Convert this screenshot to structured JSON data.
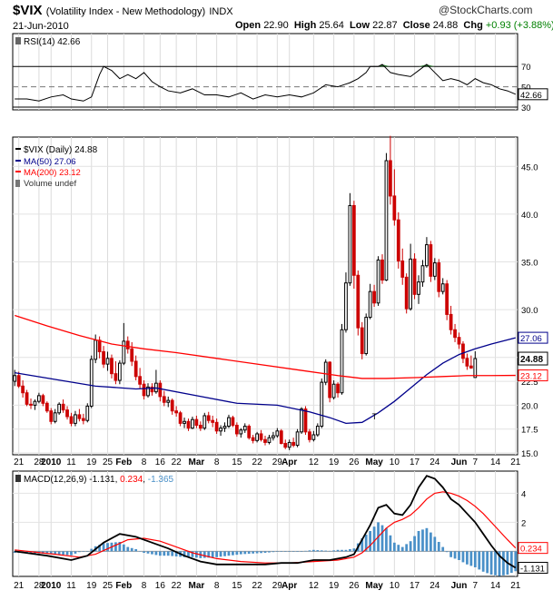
{
  "header": {
    "symbol": "$VIX",
    "name": "(Volatility Index - New Methodology)",
    "exchange": "INDX",
    "watermark": "@StockCharts.com",
    "date": "21-Jun-2010",
    "open_label": "Open",
    "open": "22.90",
    "high_label": "High",
    "high": "25.64",
    "low_label": "Low",
    "low": "22.87",
    "close_label": "Close",
    "close": "24.88",
    "chg_label": "Chg",
    "chg": "+0.93 (+3.88%)",
    "chg_arrow": "▲"
  },
  "colors": {
    "up": "#000000",
    "down": "#cc0000",
    "ma50": "#00008b",
    "ma200": "#ff0000",
    "macd_line": "#000000",
    "signal_line": "#ff0000",
    "histogram": "#4a90c8",
    "rsi_fill": "#2e7d32"
  },
  "x_labels": [
    {
      "i": 1,
      "t": "21"
    },
    {
      "i": 6,
      "t": "28"
    },
    {
      "i": 9,
      "t": "2010",
      "bold": true
    },
    {
      "i": 14,
      "t": "11"
    },
    {
      "i": 19,
      "t": "19"
    },
    {
      "i": 23,
      "t": "25"
    },
    {
      "i": 27,
      "t": "Feb",
      "bold": true
    },
    {
      "i": 32,
      "t": "8"
    },
    {
      "i": 36,
      "t": "16"
    },
    {
      "i": 40,
      "t": "22"
    },
    {
      "i": 45,
      "t": "Mar",
      "bold": true
    },
    {
      "i": 50,
      "t": "8"
    },
    {
      "i": 55,
      "t": "15"
    },
    {
      "i": 60,
      "t": "22"
    },
    {
      "i": 65,
      "t": "29"
    },
    {
      "i": 68,
      "t": "Apr",
      "bold": true
    },
    {
      "i": 74,
      "t": "12"
    },
    {
      "i": 79,
      "t": "19"
    },
    {
      "i": 84,
      "t": "26"
    },
    {
      "i": 89,
      "t": "May",
      "bold": true
    },
    {
      "i": 94,
      "t": "10"
    },
    {
      "i": 99,
      "t": "17"
    },
    {
      "i": 104,
      "t": "24"
    },
    {
      "i": 110,
      "t": "Jun",
      "bold": true
    },
    {
      "i": 114,
      "t": "7"
    },
    {
      "i": 119,
      "t": "14"
    },
    {
      "i": 124,
      "t": "21"
    }
  ],
  "rsi": {
    "label": "RSI(14) 42.66",
    "last": "42.66",
    "ticks": [
      "70",
      "50",
      "30"
    ],
    "levels": [
      70,
      50,
      30
    ],
    "points": [
      [
        0,
        38
      ],
      [
        3,
        38
      ],
      [
        6,
        36
      ],
      [
        9,
        40
      ],
      [
        12,
        42
      ],
      [
        14,
        38
      ],
      [
        17,
        36
      ],
      [
        19,
        40
      ],
      [
        21,
        62
      ],
      [
        22,
        70
      ],
      [
        24,
        66
      ],
      [
        26,
        58
      ],
      [
        28,
        62
      ],
      [
        30,
        58
      ],
      [
        32,
        64
      ],
      [
        34,
        55
      ],
      [
        36,
        50
      ],
      [
        38,
        46
      ],
      [
        41,
        44
      ],
      [
        44,
        48
      ],
      [
        47,
        42
      ],
      [
        50,
        42
      ],
      [
        53,
        40
      ],
      [
        56,
        44
      ],
      [
        59,
        38
      ],
      [
        62,
        42
      ],
      [
        65,
        40
      ],
      [
        68,
        42
      ],
      [
        71,
        40
      ],
      [
        74,
        44
      ],
      [
        77,
        52
      ],
      [
        80,
        50
      ],
      [
        83,
        54
      ],
      [
        85,
        58
      ],
      [
        87,
        64
      ],
      [
        88,
        70
      ],
      [
        90,
        70
      ],
      [
        91,
        72
      ],
      [
        93,
        64
      ],
      [
        95,
        62
      ],
      [
        98,
        60
      ],
      [
        100,
        66
      ],
      [
        102,
        72
      ],
      [
        104,
        64
      ],
      [
        106,
        56
      ],
      [
        108,
        58
      ],
      [
        110,
        56
      ],
      [
        112,
        52
      ],
      [
        114,
        58
      ],
      [
        116,
        54
      ],
      [
        118,
        52
      ],
      [
        120,
        48
      ],
      [
        122,
        46
      ],
      [
        124,
        42.66
      ]
    ]
  },
  "price": {
    "label": "$VIX (Daily) 24.88",
    "ma50_label": "MA(50) 27.06",
    "ma200_label": "MA(200) 23.12",
    "volume_label": "Volume undef",
    "ticks": [
      "45.0",
      "40.0",
      "35.0",
      "30.0",
      "25.0",
      "22.5",
      "20.0",
      "17.5",
      "15.0"
    ],
    "tick_values": [
      45,
      40,
      35,
      30,
      25,
      22.5,
      20,
      17.5,
      15
    ],
    "ymin": 15,
    "ymax": 47.5,
    "last_close": "24.88",
    "ma50_last": "27.06",
    "ma200_last": "23.12",
    "annotation": "T",
    "candles": [
      [
        22.5,
        23.7,
        22.0,
        23.1
      ],
      [
        23.1,
        23.5,
        21.8,
        22.0
      ],
      [
        22.0,
        22.6,
        20.8,
        21.3
      ],
      [
        21.3,
        21.6,
        19.9,
        20.1
      ],
      [
        20.1,
        20.7,
        19.6,
        20.0
      ],
      [
        20.0,
        20.6,
        19.5,
        20.4
      ],
      [
        20.4,
        21.3,
        20.2,
        21.0
      ],
      [
        21.0,
        21.2,
        19.9,
        20.2
      ],
      [
        20.2,
        20.4,
        19.2,
        19.4
      ],
      [
        19.4,
        19.7,
        18.0,
        18.3
      ],
      [
        18.3,
        19.6,
        18.1,
        19.2
      ],
      [
        19.2,
        20.3,
        19.0,
        20.1
      ],
      [
        20.1,
        20.6,
        19.2,
        19.5
      ],
      [
        19.5,
        19.9,
        18.5,
        18.8
      ],
      [
        18.8,
        19.2,
        17.8,
        18.1
      ],
      [
        18.1,
        19.4,
        17.8,
        19.0
      ],
      [
        19.0,
        19.6,
        18.3,
        18.6
      ],
      [
        18.6,
        19.1,
        18.0,
        18.4
      ],
      [
        18.4,
        20.2,
        18.2,
        19.9
      ],
      [
        19.9,
        25.2,
        19.7,
        24.8
      ],
      [
        24.8,
        27.4,
        24.4,
        26.8
      ],
      [
        26.8,
        27.2,
        24.9,
        25.6
      ],
      [
        25.6,
        26.2,
        23.9,
        24.3
      ],
      [
        24.3,
        25.6,
        23.6,
        24.9
      ],
      [
        24.9,
        25.3,
        22.8,
        23.3
      ],
      [
        23.3,
        24.6,
        22.2,
        22.6
      ],
      [
        22.6,
        24.7,
        22.2,
        24.4
      ],
      [
        24.4,
        28.6,
        24.2,
        26.7
      ],
      [
        26.7,
        27.2,
        25.4,
        25.9
      ],
      [
        25.9,
        26.6,
        24.1,
        24.6
      ],
      [
        24.6,
        25.2,
        22.6,
        23.0
      ],
      [
        23.0,
        23.9,
        21.7,
        22.2
      ],
      [
        22.2,
        22.6,
        20.6,
        21.0
      ],
      [
        21.0,
        22.3,
        20.8,
        21.9
      ],
      [
        21.9,
        22.3,
        21.0,
        21.4
      ],
      [
        21.4,
        23.7,
        21.2,
        22.3
      ],
      [
        22.3,
        22.6,
        20.4,
        20.9
      ],
      [
        20.9,
        21.5,
        19.9,
        20.3
      ],
      [
        20.3,
        20.9,
        19.8,
        20.5
      ],
      [
        20.5,
        20.7,
        19.0,
        19.4
      ],
      [
        19.4,
        19.9,
        18.8,
        19.2
      ],
      [
        19.2,
        19.4,
        17.8,
        18.1
      ],
      [
        18.1,
        18.7,
        17.6,
        18.3
      ],
      [
        18.3,
        18.6,
        17.3,
        17.6
      ],
      [
        17.6,
        18.8,
        17.5,
        18.5
      ],
      [
        18.5,
        18.9,
        17.6,
        17.9
      ],
      [
        17.9,
        18.3,
        17.3,
        17.6
      ],
      [
        17.6,
        19.2,
        17.4,
        18.9
      ],
      [
        18.9,
        19.3,
        18.1,
        18.4
      ],
      [
        18.4,
        18.9,
        17.7,
        18.2
      ],
      [
        18.2,
        18.6,
        17.0,
        17.3
      ],
      [
        17.3,
        17.9,
        16.8,
        17.6
      ],
      [
        17.6,
        18.2,
        17.2,
        17.8
      ],
      [
        17.8,
        19.0,
        17.6,
        18.7
      ],
      [
        18.7,
        18.9,
        17.7,
        17.9
      ],
      [
        17.9,
        18.2,
        16.7,
        17.0
      ],
      [
        17.0,
        17.6,
        16.6,
        17.4
      ],
      [
        17.4,
        18.1,
        17.1,
        17.8
      ],
      [
        17.8,
        18.0,
        16.4,
        16.6
      ],
      [
        16.6,
        16.9,
        16.0,
        16.3
      ],
      [
        16.3,
        17.2,
        16.1,
        17.0
      ],
      [
        17.0,
        17.4,
        16.2,
        16.4
      ],
      [
        16.4,
        16.8,
        15.8,
        16.1
      ],
      [
        16.1,
        16.9,
        15.9,
        16.6
      ],
      [
        16.6,
        17.2,
        16.3,
        16.8
      ],
      [
        16.8,
        17.6,
        16.6,
        17.3
      ],
      [
        17.3,
        17.5,
        15.9,
        16.0
      ],
      [
        16.0,
        16.4,
        15.4,
        15.6
      ],
      [
        15.6,
        16.4,
        15.3,
        16.1
      ],
      [
        16.1,
        16.6,
        15.6,
        15.8
      ],
      [
        15.8,
        17.5,
        15.6,
        17.2
      ],
      [
        17.2,
        19.8,
        17.0,
        19.6
      ],
      [
        19.6,
        19.9,
        16.9,
        17.2
      ],
      [
        17.2,
        17.5,
        16.1,
        16.4
      ],
      [
        16.4,
        17.3,
        16.2,
        16.9
      ],
      [
        16.9,
        18.1,
        16.7,
        17.8
      ],
      [
        17.8,
        22.8,
        17.6,
        22.4
      ],
      [
        22.4,
        24.8,
        22.1,
        24.5
      ],
      [
        24.5,
        24.6,
        20.3,
        20.8
      ],
      [
        20.8,
        22.6,
        20.6,
        22.2
      ],
      [
        22.2,
        22.4,
        20.8,
        21.3
      ],
      [
        21.3,
        28.5,
        21.1,
        27.9
      ],
      [
        27.9,
        33.9,
        27.6,
        32.8
      ],
      [
        32.8,
        42.2,
        32.5,
        40.9
      ],
      [
        40.9,
        41.4,
        32.2,
        33.6
      ],
      [
        33.6,
        34.1,
        27.3,
        28.1
      ],
      [
        28.1,
        28.7,
        24.8,
        25.4
      ],
      [
        25.4,
        29.6,
        25.2,
        29.2
      ],
      [
        29.2,
        32.7,
        29.0,
        31.9
      ],
      [
        31.9,
        32.6,
        30.3,
        30.7
      ],
      [
        30.7,
        35.6,
        30.4,
        35.2
      ],
      [
        35.2,
        35.8,
        32.7,
        33.1
      ],
      [
        33.1,
        46.4,
        33.0,
        45.6
      ],
      [
        45.6,
        48.2,
        41.0,
        41.9
      ],
      [
        41.9,
        44.7,
        38.8,
        39.4
      ],
      [
        39.4,
        40.2,
        34.3,
        35.1
      ],
      [
        35.1,
        36.4,
        32.6,
        33.4
      ],
      [
        33.4,
        33.8,
        29.6,
        30.1
      ],
      [
        30.1,
        36.9,
        29.9,
        35.3
      ],
      [
        35.3,
        35.9,
        31.1,
        31.6
      ],
      [
        31.6,
        33.6,
        30.6,
        32.9
      ],
      [
        32.9,
        35.2,
        32.4,
        34.6
      ],
      [
        34.6,
        37.6,
        34.4,
        36.8
      ],
      [
        36.8,
        37.2,
        32.9,
        33.5
      ],
      [
        33.5,
        35.4,
        33.1,
        34.9
      ],
      [
        34.9,
        35.3,
        31.3,
        31.9
      ],
      [
        31.9,
        33.3,
        31.6,
        32.7
      ],
      [
        32.7,
        33.1,
        28.9,
        29.5
      ],
      [
        29.5,
        30.4,
        27.4,
        27.9
      ],
      [
        27.9,
        28.5,
        26.6,
        27.1
      ],
      [
        27.1,
        27.6,
        25.9,
        26.4
      ],
      [
        26.4,
        26.7,
        24.4,
        24.9
      ],
      [
        24.9,
        25.4,
        23.7,
        24.1
      ],
      [
        24.1,
        25.2,
        23.8,
        23.9
      ],
      [
        22.9,
        25.64,
        22.87,
        24.88
      ]
    ],
    "ma50": [
      [
        0,
        23.4
      ],
      [
        10,
        22.7
      ],
      [
        20,
        22.0
      ],
      [
        30,
        21.7
      ],
      [
        35,
        21.8
      ],
      [
        45,
        21.0
      ],
      [
        55,
        20.2
      ],
      [
        65,
        20.0
      ],
      [
        73,
        19.3
      ],
      [
        78,
        18.7
      ],
      [
        82,
        18.1
      ],
      [
        86,
        18.2
      ],
      [
        90,
        19.2
      ],
      [
        94,
        20.4
      ],
      [
        98,
        21.8
      ],
      [
        102,
        23.2
      ],
      [
        106,
        24.4
      ],
      [
        110,
        25.3
      ],
      [
        114,
        25.9
      ],
      [
        118,
        26.4
      ],
      [
        124,
        27.06
      ]
    ],
    "ma200": [
      [
        0,
        29.4
      ],
      [
        8,
        28.3
      ],
      [
        16,
        27.3
      ],
      [
        24,
        26.4
      ],
      [
        32,
        25.9
      ],
      [
        40,
        25.5
      ],
      [
        50,
        24.9
      ],
      [
        60,
        24.3
      ],
      [
        70,
        23.7
      ],
      [
        80,
        23.1
      ],
      [
        86,
        22.8
      ],
      [
        92,
        22.8
      ],
      [
        100,
        22.9
      ],
      [
        106,
        23.0
      ],
      [
        112,
        23.1
      ],
      [
        118,
        23.1
      ],
      [
        124,
        23.12
      ]
    ]
  },
  "macd": {
    "label_prefix": "MACD(12,26,9)",
    "macd_value": "-1.131",
    "signal_value": "0.234",
    "hist_value": "-1.365",
    "ticks": [
      "4",
      "2"
    ],
    "tick_values": [
      4,
      2
    ],
    "ymin": -1.6,
    "ymax": 5.4,
    "macd_last": "-1.131",
    "signal_last": "0.234",
    "macd_pts": [
      [
        0,
        0.0
      ],
      [
        8,
        -0.3
      ],
      [
        14,
        -0.6
      ],
      [
        18,
        -0.3
      ],
      [
        22,
        0.6
      ],
      [
        26,
        1.2
      ],
      [
        30,
        1.0
      ],
      [
        34,
        0.6
      ],
      [
        38,
        0.2
      ],
      [
        42,
        -0.3
      ],
      [
        46,
        -0.7
      ],
      [
        50,
        -0.9
      ],
      [
        56,
        -0.9
      ],
      [
        62,
        -0.9
      ],
      [
        66,
        -0.8
      ],
      [
        70,
        -0.8
      ],
      [
        74,
        -0.6
      ],
      [
        78,
        -0.6
      ],
      [
        82,
        -0.4
      ],
      [
        84,
        -0.2
      ],
      [
        86,
        0.8
      ],
      [
        88,
        1.8
      ],
      [
        90,
        3.0
      ],
      [
        92,
        3.2
      ],
      [
        94,
        2.6
      ],
      [
        96,
        2.5
      ],
      [
        98,
        3.2
      ],
      [
        100,
        4.4
      ],
      [
        102,
        5.2
      ],
      [
        104,
        5.0
      ],
      [
        106,
        4.4
      ],
      [
        108,
        3.6
      ],
      [
        110,
        3.2
      ],
      [
        112,
        2.6
      ],
      [
        114,
        2.0
      ],
      [
        116,
        1.2
      ],
      [
        118,
        0.4
      ],
      [
        120,
        -0.3
      ],
      [
        122,
        -0.8
      ],
      [
        124,
        -1.131
      ]
    ],
    "signal_pts": [
      [
        0,
        0.1
      ],
      [
        10,
        -0.2
      ],
      [
        16,
        -0.4
      ],
      [
        20,
        -0.2
      ],
      [
        24,
        0.3
      ],
      [
        28,
        0.8
      ],
      [
        32,
        0.9
      ],
      [
        36,
        0.7
      ],
      [
        40,
        0.3
      ],
      [
        44,
        -0.1
      ],
      [
        50,
        -0.5
      ],
      [
        56,
        -0.7
      ],
      [
        62,
        -0.8
      ],
      [
        68,
        -0.8
      ],
      [
        74,
        -0.7
      ],
      [
        80,
        -0.6
      ],
      [
        84,
        -0.4
      ],
      [
        86,
        -0.1
      ],
      [
        88,
        0.4
      ],
      [
        90,
        1.0
      ],
      [
        92,
        1.6
      ],
      [
        94,
        2.0
      ],
      [
        96,
        2.2
      ],
      [
        98,
        2.5
      ],
      [
        100,
        3.0
      ],
      [
        102,
        3.6
      ],
      [
        104,
        4.0
      ],
      [
        106,
        4.1
      ],
      [
        108,
        4.0
      ],
      [
        110,
        3.8
      ],
      [
        112,
        3.5
      ],
      [
        114,
        3.1
      ],
      [
        116,
        2.6
      ],
      [
        118,
        2.0
      ],
      [
        120,
        1.4
      ],
      [
        122,
        0.8
      ],
      [
        124,
        0.234
      ]
    ]
  }
}
